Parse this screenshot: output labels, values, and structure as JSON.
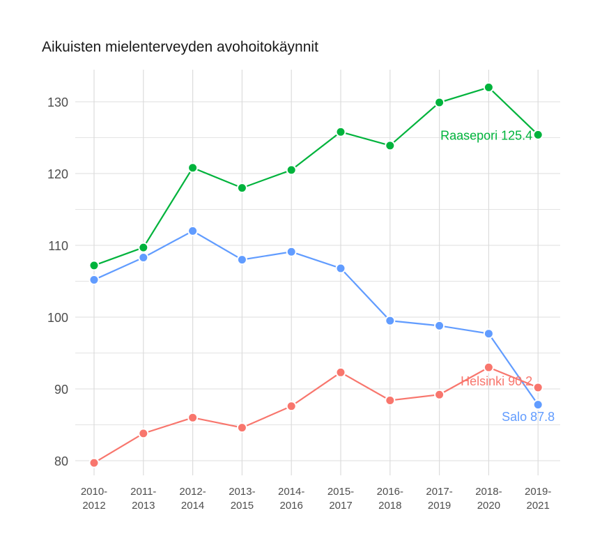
{
  "chart_data": {
    "type": "line",
    "title": "Aikuisten mielenterveyden avohoitokäynnit",
    "xlabel": "",
    "ylabel": "",
    "categories": [
      "2010-2012",
      "2011-2013",
      "2012-2014",
      "2013-2015",
      "2014-2016",
      "2015-2017",
      "2016-2018",
      "2017-2019",
      "2018-2020",
      "2019-2021"
    ],
    "category_lines": [
      [
        "2010-",
        "2012"
      ],
      [
        "2011-",
        "2013"
      ],
      [
        "2012-",
        "2014"
      ],
      [
        "2013-",
        "2015"
      ],
      [
        "2014-",
        "2016"
      ],
      [
        "2015-",
        "2017"
      ],
      [
        "2016-",
        "2018"
      ],
      [
        "2017-",
        "2019"
      ],
      [
        "2018-",
        "2020"
      ],
      [
        "2019-",
        "2021"
      ]
    ],
    "yticks": [
      80,
      90,
      100,
      110,
      120,
      130
    ],
    "ylim": [
      77.5,
      134
    ],
    "grid": true,
    "legend": "direct labels at series end",
    "series": [
      {
        "name": "Raasepori",
        "color": "#00b33c",
        "end_label": "Raasepori 125.4",
        "values": [
          107.2,
          109.7,
          120.8,
          118.0,
          120.5,
          125.8,
          123.9,
          129.9,
          132.0,
          125.4
        ]
      },
      {
        "name": "Salo",
        "color": "#619cff",
        "end_label": "Salo 87.8",
        "values": [
          105.2,
          108.3,
          112.0,
          108.0,
          109.1,
          106.8,
          99.5,
          98.8,
          97.7,
          87.8
        ]
      },
      {
        "name": "Helsinki",
        "color": "#f8766d",
        "end_label": "Helsinki 90.2",
        "values": [
          79.7,
          83.8,
          86.0,
          84.6,
          87.6,
          92.3,
          88.4,
          89.2,
          93.0,
          90.2
        ]
      }
    ]
  }
}
